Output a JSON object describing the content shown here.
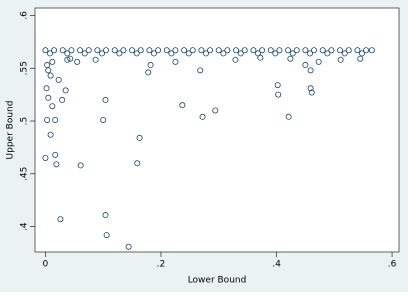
{
  "chart_data": {
    "type": "scatter",
    "x_label": "Lower Bound",
    "y_label": "Upper Bound",
    "color": "#1a476f",
    "xlim": [
      -0.018,
      0.612
    ],
    "ylim": [
      0.376,
      0.607
    ],
    "xticks": [
      0,
      {
        "value": 0.2,
        "label": ".2"
      },
      {
        "value": 0.4,
        "label": ".4"
      },
      {
        "value": 0.6,
        "label": ".6"
      }
    ],
    "yticks": [
      {
        "value": 0.4,
        "label": ".4"
      },
      {
        "value": 0.45,
        "label": ".45"
      },
      {
        "value": 0.5,
        "label": ".5"
      },
      {
        "value": 0.55,
        "label": ".55"
      },
      {
        "value": 0.6,
        "label": ".6"
      }
    ],
    "x": [
      0,
      0.003,
      0.005,
      0.002,
      0.009,
      0.012,
      0.017,
      0.017,
      0.019,
      0.026,
      0.029,
      0.023,
      0.035,
      0.038,
      0.061,
      0.1,
      0.104,
      0.104,
      0.106,
      0.144,
      0.159,
      0.163,
      0.178,
      0.237,
      0.268,
      0.272,
      0.294,
      0.402,
      0.403,
      0.421,
      0.459,
      0.461,
      0.459,
      0.473,
      0.45,
      0.005,
      0.009,
      0.012,
      0.003,
      0.043,
      0.055,
      0.087,
      0.182,
      0.225,
      0.329,
      0.372,
      0.511,
      0.545,
      0.424,
      0,
      0.015,
      0.03,
      0.045,
      0.06,
      0.075,
      0.09,
      0.105,
      0.12,
      0.135,
      0.15,
      0.165,
      0.18,
      0.195,
      0.21,
      0.225,
      0.24,
      0.255,
      0.27,
      0.285,
      0.3,
      0.315,
      0.33,
      0.345,
      0.36,
      0.375,
      0.39,
      0.405,
      0.42,
      0.435,
      0.45,
      0.465,
      0.48,
      0.495,
      0.51,
      0.525,
      0.54,
      0.555,
      0.565,
      0.008,
      0.038,
      0.068,
      0.098,
      0.128,
      0.158,
      0.188,
      0.218,
      0.248,
      0.278,
      0.308,
      0.338,
      0.368,
      0.398,
      0.428,
      0.458,
      0.488,
      0.518,
      0.548
    ],
    "values": [
      0.465,
      0.501,
      0.522,
      0.531,
      0.487,
      0.514,
      0.501,
      0.468,
      0.459,
      0.407,
      0.52,
      0.539,
      0.529,
      0.558,
      0.458,
      0.501,
      0.52,
      0.411,
      0.392,
      0.381,
      0.46,
      0.484,
      0.546,
      0.515,
      0.548,
      0.504,
      0.51,
      0.534,
      0.525,
      0.504,
      0.531,
      0.527,
      0.548,
      0.556,
      0.553,
      0.548,
      0.543,
      0.556,
      0.553,
      0.559,
      0.556,
      0.558,
      0.553,
      0.556,
      0.558,
      0.56,
      0.558,
      0.559,
      0.559,
      0.567,
      0.567,
      0.567,
      0.567,
      0.567,
      0.567,
      0.567,
      0.567,
      0.567,
      0.567,
      0.567,
      0.567,
      0.567,
      0.567,
      0.567,
      0.567,
      0.567,
      0.567,
      0.567,
      0.567,
      0.567,
      0.567,
      0.567,
      0.567,
      0.567,
      0.567,
      0.567,
      0.567,
      0.567,
      0.567,
      0.567,
      0.567,
      0.567,
      0.567,
      0.567,
      0.567,
      0.567,
      0.567,
      0.567,
      0.564,
      0.564,
      0.564,
      0.564,
      0.564,
      0.564,
      0.564,
      0.564,
      0.564,
      0.564,
      0.564,
      0.564,
      0.564,
      0.564,
      0.564,
      0.564,
      0.564,
      0.564,
      0.564
    ]
  }
}
